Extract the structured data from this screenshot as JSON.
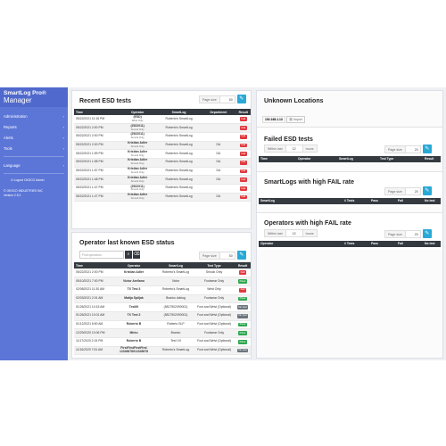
{
  "app": {
    "brand_line1": "SmartLog Pro®",
    "brand_line2": "Manager"
  },
  "sidebar": {
    "items": [
      {
        "label": "Administration"
      },
      {
        "label": "Reports"
      },
      {
        "label": "Alerts"
      },
      {
        "label": "Tools"
      }
    ],
    "language": "Language",
    "logout": "Logout OKSCO Admin",
    "company": "© OKSCO INDUSTRIES INC",
    "version": "version 2.5.2"
  },
  "recent": {
    "title": "Recent ESD tests",
    "page_size_label": "Page size",
    "page_size": "50",
    "columns": [
      "Time",
      "Operator",
      "SmartLog",
      "Department",
      "Result"
    ],
    "rows": [
      {
        "time": "05/22/2021 11:16 PM",
        "op": "(ESD)",
        "sub": "Wrist Only",
        "sl": "Roberto's SmartLog",
        "dep": "",
        "res": "Fail"
      },
      {
        "time": "05/22/2021 2:00 PM",
        "op": "(2522011)",
        "sub": "Smock Only",
        "sl": "Roberto's SmartLog",
        "dep": "",
        "res": "Fail"
      },
      {
        "time": "05/22/2021 2:00 PM",
        "op": "(2522011)",
        "sub": "Smock Only",
        "sl": "Roberto's SmartLog",
        "dep": "",
        "res": "Fail"
      },
      {
        "time": "05/22/2021 2:00 PM",
        "op": "Kristian Adler",
        "sub": "Smock Only",
        "sl": "Roberto's SmartLog",
        "dep": "DA",
        "res": "Fail"
      },
      {
        "time": "05/22/2021 1:59 PM",
        "op": "Kristian Adler",
        "sub": "Smock Only",
        "sl": "Roberto's SmartLog",
        "dep": "DA",
        "res": "Fail"
      },
      {
        "time": "05/22/2021 1:58 PM",
        "op": "Kristian Adler",
        "sub": "Smock Only",
        "sl": "Roberto's SmartLog",
        "dep": "DA",
        "res": "Fail"
      },
      {
        "time": "05/22/2021 1:57 PM",
        "op": "Kristian Adler",
        "sub": "Smock Only",
        "sl": "Roberto's SmartLog",
        "dep": "DA",
        "res": "Fail"
      },
      {
        "time": "05/22/2021 1:48 PM",
        "op": "Kristian Adler",
        "sub": "Smock Only",
        "sl": "Roberto's SmartLog",
        "dep": "DA",
        "res": "Fail"
      },
      {
        "time": "05/22/2021 1:47 PM",
        "op": "(2522011)",
        "sub": "Smock Only",
        "sl": "Roberto's SmartLog",
        "dep": "",
        "res": "Fail"
      },
      {
        "time": "05/22/2021 1:47 PM",
        "op": "Kristian Adler",
        "sub": "Smock Only",
        "sl": "Roberto's SmartLog",
        "dep": "DA",
        "res": "Fail"
      }
    ]
  },
  "last_known": {
    "title": "Operator last known ESD status",
    "filter_placeholder": "Find operators",
    "page_size_label": "Page size",
    "page_size": "50",
    "columns": [
      "Time",
      "Operator",
      "SmartLog",
      "Test Type",
      "Result"
    ],
    "rows": [
      {
        "time": "05/22/2021 2:00 PM",
        "op": "Kristian Adler",
        "sl": "Roberto's SmartLog",
        "tt": "Smock Only",
        "res": "Fail"
      },
      {
        "time": "05/10/2021 7:00 PM",
        "op": "Victor Arellano",
        "sl": "Victor",
        "tt": "Footwear Only",
        "res": "Pass"
      },
      {
        "time": "02/08/2021 11:30 AM",
        "op": "TX Test 3",
        "sl": "Roberto's SmartLog",
        "tt": "Wrist Only",
        "res": "Fail"
      },
      {
        "time": "02/03/2021 2:01 AM",
        "op": "Matija Spiljak",
        "sl": "Branko doktog",
        "tt": "Footwear Only",
        "res": "Pass"
      },
      {
        "time": "01/26/2021 10:15 AM",
        "op": "Test00",
        "sl": "(5817502090001)",
        "tt": "Foot and Wrist (Optional)",
        "res": "No test"
      },
      {
        "time": "01/26/2021 10:01 AM",
        "op": "TX Test 2",
        "sl": "(5817502090001)",
        "tt": "Foot and Wrist (Optional)",
        "res": "No test"
      },
      {
        "time": "01/12/2021 8:50 AM",
        "op": "Roberto B",
        "sl": "Roberto SLP",
        "tt": "Foot and Wrist (Optional)",
        "res": "Pass"
      },
      {
        "time": "12/29/2020 10:06 PM",
        "op": "Mirko",
        "sl": "Branko",
        "tt": "Footwear Only",
        "res": "Pass"
      },
      {
        "time": "11/17/2020 2:15 PM",
        "op": "Roberto B",
        "sl": "Test VII",
        "tt": "Foot and Wrist (Optional)",
        "res": "Pass"
      },
      {
        "time": "11/16/2020 7:51 AM",
        "op": "FirstFirstFirstFirst 12345678912345678",
        "sl": "Roberto's SmartLog",
        "tt": "Foot and Wrist (Optional)",
        "res": "No test"
      }
    ]
  },
  "unknown": {
    "title": "Unknown Locations",
    "ip": "192.168.1.13",
    "import_label": "Import"
  },
  "failed": {
    "title": "Failed ESD tests",
    "within_label": "Within last",
    "within_value": "12",
    "within_unit": "hours",
    "page_size_label": "Page size",
    "page_size": "20",
    "columns": [
      "Time",
      "Operator",
      "SmartLog",
      "Test Type",
      "Result"
    ]
  },
  "smartlogs_fail": {
    "title": "SmartLogs with high FAIL rate",
    "page_size_label": "Page size",
    "page_size": "20",
    "columns": [
      "SmartLog",
      "# Tests",
      "Pass",
      "Fail",
      "No test"
    ]
  },
  "operators_fail": {
    "title": "Operators with high FAIL rate",
    "within_label": "Within last",
    "within_value": "12",
    "within_unit": "hours",
    "page_size_label": "Page size",
    "page_size": "20",
    "columns": [
      "Operator",
      "# Tests",
      "Pass",
      "Fail",
      "No test"
    ]
  },
  "colors": {
    "sidebar": "#5c76d8",
    "fail": "#e0393e",
    "pass": "#2fa84f",
    "notest": "#6c757d",
    "accent": "#29a9d6"
  }
}
